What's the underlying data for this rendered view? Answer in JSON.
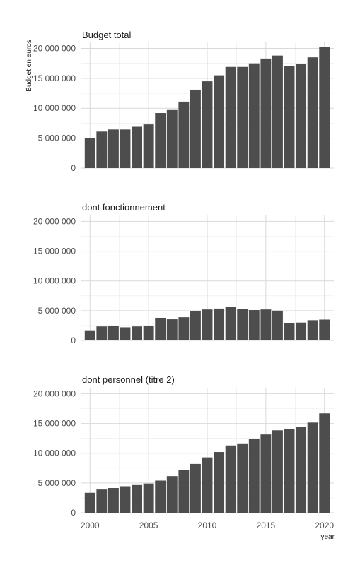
{
  "chart_data": {
    "type": "bar",
    "ylabel": "Budget en euros",
    "xlabel": "year",
    "x": [
      2000,
      2001,
      2002,
      2003,
      2004,
      2005,
      2006,
      2007,
      2008,
      2009,
      2010,
      2011,
      2012,
      2013,
      2014,
      2015,
      2016,
      2017,
      2018,
      2019,
      2020
    ],
    "xticks": [
      2000,
      2005,
      2010,
      2015,
      2020
    ],
    "ylim": [
      0,
      21000000
    ],
    "yticks": [
      0,
      5000000,
      10000000,
      15000000,
      20000000
    ],
    "ytick_labels": [
      "0",
      "5 000 000",
      "10 000 000",
      "15 000 000",
      "20 000 000"
    ],
    "grid": true,
    "bar_color": "#4d4d4d",
    "panels": [
      {
        "title": "Budget total",
        "values": [
          5000000,
          6100000,
          6450000,
          6450000,
          6900000,
          7300000,
          9200000,
          9700000,
          11100000,
          13100000,
          14500000,
          15500000,
          16900000,
          16900000,
          17500000,
          18300000,
          18800000,
          17000000,
          17400000,
          18500000,
          20200000
        ]
      },
      {
        "title": "dont fonctionnement",
        "values": [
          1700000,
          2350000,
          2400000,
          2200000,
          2350000,
          2450000,
          3800000,
          3550000,
          3900000,
          4900000,
          5200000,
          5350000,
          5600000,
          5300000,
          5100000,
          5200000,
          5000000,
          2950000,
          3000000,
          3400000,
          3500000
        ]
      },
      {
        "title": "dont personnel (titre 2)",
        "values": [
          3350000,
          3900000,
          4150000,
          4450000,
          4650000,
          4900000,
          5400000,
          6150000,
          7200000,
          8200000,
          9300000,
          10200000,
          11300000,
          11650000,
          12350000,
          13150000,
          13850000,
          14100000,
          14450000,
          15150000,
          16700000
        ]
      }
    ]
  }
}
